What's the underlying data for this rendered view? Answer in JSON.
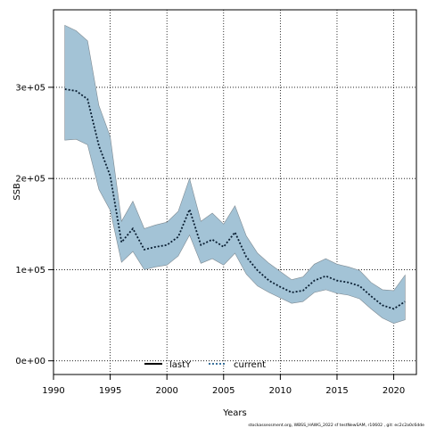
{
  "chart_data": {
    "type": "line",
    "title": "",
    "xlabel": "Years",
    "ylabel": "SSB",
    "xlim": [
      1990,
      2022
    ],
    "ylim": [
      -15000,
      385000
    ],
    "x_ticks": [
      1990,
      1995,
      2000,
      2005,
      2010,
      2015,
      2020
    ],
    "x_tick_labels": [
      "1990",
      "1995",
      "2000",
      "2005",
      "2010",
      "2015",
      "2020"
    ],
    "y_ticks": [
      0,
      100000,
      200000,
      300000
    ],
    "y_tick_labels": [
      "0e+00",
      "1e+05",
      "2e+05",
      "3e+05"
    ],
    "grid": true,
    "legend_position": "bottom-center",
    "legend": [
      {
        "label": "lastY",
        "style": "solid",
        "color": "#000000"
      },
      {
        "label": "current",
        "style": "dotted",
        "color": "#1f5f8f"
      }
    ],
    "band_color": "#a3c3d6",
    "x": [
      1991,
      1992,
      1993,
      1994,
      1995,
      1996,
      1997,
      1998,
      1999,
      2000,
      2001,
      2002,
      2003,
      2004,
      2005,
      2006,
      2007,
      2008,
      2009,
      2010,
      2011,
      2012,
      2013,
      2014,
      2015,
      2016,
      2017,
      2018,
      2019,
      2020,
      2021
    ],
    "series": [
      {
        "name": "current",
        "values": [
          298000,
          296000,
          287000,
          236000,
          203000,
          130000,
          145000,
          122000,
          125000,
          127000,
          136000,
          166000,
          127000,
          133000,
          125000,
          141000,
          114000,
          99000,
          88000,
          81000,
          75000,
          77000,
          88000,
          93000,
          88000,
          86000,
          82000,
          71000,
          61000,
          57000,
          65000
        ]
      }
    ],
    "band": {
      "upper": [
        368000,
        362000,
        351000,
        280000,
        246000,
        153000,
        175000,
        145000,
        149000,
        152000,
        164000,
        200000,
        153000,
        162000,
        150000,
        170000,
        137000,
        118000,
        107000,
        98000,
        89000,
        92000,
        106000,
        112000,
        106000,
        103000,
        99000,
        86000,
        78000,
        77000,
        94000
      ],
      "lower": [
        242000,
        243000,
        237000,
        188000,
        165000,
        108000,
        120000,
        100000,
        103000,
        105000,
        115000,
        138000,
        107000,
        112000,
        105000,
        118000,
        95000,
        82000,
        75000,
        69000,
        63000,
        65000,
        75000,
        78000,
        74000,
        72000,
        68000,
        57000,
        47000,
        41000,
        45000
      ]
    }
  },
  "footnote": "stockassessment.org, WBSS_HAWG_2022 sf testNewSAM, r10602 , git: ec2c2a0c6dde"
}
